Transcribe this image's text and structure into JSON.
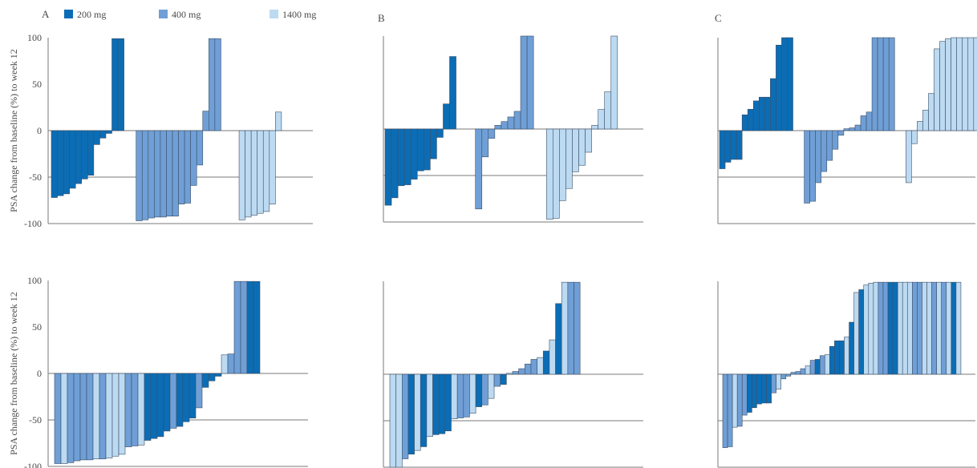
{
  "colors": {
    "200 mg": "#0b6db5",
    "400 mg": "#6f9fd6",
    "1400 mg": "#bcdaf1"
  },
  "legend": [
    {
      "name": "200 mg",
      "color": "#0b6db5"
    },
    {
      "name": "400 mg",
      "color": "#6f9fd6"
    },
    {
      "name": "1400 mg",
      "color": "#bcdaf1"
    }
  ],
  "ylabel": "PSA change from baseline (%) to week 12",
  "chart_data": [
    {
      "type": "bar",
      "panel": "A",
      "row": 1,
      "title": "A",
      "ylabel": "PSA change from baseline (%) to week 12",
      "ylim": [
        -100,
        100
      ],
      "yticks": [
        "100",
        "50",
        "0",
        "-50",
        "-100"
      ],
      "bars": [
        {
          "value": -72,
          "series": "200 mg"
        },
        {
          "value": -70,
          "series": "200 mg"
        },
        {
          "value": -68,
          "series": "200 mg"
        },
        {
          "value": -62,
          "series": "200 mg"
        },
        {
          "value": -57,
          "series": "200 mg"
        },
        {
          "value": -52,
          "series": "200 mg"
        },
        {
          "value": -48,
          "series": "200 mg"
        },
        {
          "value": -15,
          "series": "200 mg"
        },
        {
          "value": -8,
          "series": "200 mg"
        },
        {
          "value": -3,
          "series": "200 mg"
        },
        {
          "value": 99,
          "series": "200 mg"
        },
        {
          "value": 99,
          "series": "200 mg"
        },
        {
          "value": null,
          "series": ""
        },
        {
          "value": null,
          "series": ""
        },
        {
          "value": -97,
          "series": "400 mg"
        },
        {
          "value": -96,
          "series": "400 mg"
        },
        {
          "value": -94,
          "series": "400 mg"
        },
        {
          "value": -93,
          "series": "400 mg"
        },
        {
          "value": -93,
          "series": "400 mg"
        },
        {
          "value": -92,
          "series": "400 mg"
        },
        {
          "value": -92,
          "series": "400 mg"
        },
        {
          "value": -79,
          "series": "400 mg"
        },
        {
          "value": -78,
          "series": "400 mg"
        },
        {
          "value": -59,
          "series": "400 mg"
        },
        {
          "value": -37,
          "series": "400 mg"
        },
        {
          "value": 21,
          "series": "400 mg"
        },
        {
          "value": 99,
          "series": "400 mg"
        },
        {
          "value": 99,
          "series": "400 mg"
        },
        {
          "value": null,
          "series": ""
        },
        {
          "value": null,
          "series": ""
        },
        {
          "value": null,
          "series": ""
        },
        {
          "value": -96,
          "series": "1400 mg"
        },
        {
          "value": -93,
          "series": "1400 mg"
        },
        {
          "value": -91,
          "series": "1400 mg"
        },
        {
          "value": -89,
          "series": "1400 mg"
        },
        {
          "value": -87,
          "series": "1400 mg"
        },
        {
          "value": -79,
          "series": "1400 mg"
        },
        {
          "value": 20,
          "series": "1400 mg"
        }
      ]
    },
    {
      "type": "bar",
      "panel": "B",
      "row": 1,
      "title": "B",
      "ylim": [
        -100,
        100
      ],
      "yticks": [],
      "bars": [
        {
          "value": -82,
          "series": "200 mg"
        },
        {
          "value": -74,
          "series": "200 mg"
        },
        {
          "value": -61,
          "series": "200 mg"
        },
        {
          "value": -60,
          "series": "200 mg"
        },
        {
          "value": -54,
          "series": "200 mg"
        },
        {
          "value": -45,
          "series": "200 mg"
        },
        {
          "value": -44,
          "series": "200 mg"
        },
        {
          "value": -32,
          "series": "200 mg"
        },
        {
          "value": -9,
          "series": "200 mg"
        },
        {
          "value": 27,
          "series": "200 mg"
        },
        {
          "value": 78,
          "series": "200 mg"
        },
        {
          "value": null,
          "series": ""
        },
        {
          "value": null,
          "series": ""
        },
        {
          "value": null,
          "series": ""
        },
        {
          "value": -86,
          "series": "400 mg"
        },
        {
          "value": -30,
          "series": "400 mg"
        },
        {
          "value": -10,
          "series": "400 mg"
        },
        {
          "value": 4,
          "series": "400 mg"
        },
        {
          "value": 8,
          "series": "400 mg"
        },
        {
          "value": 13,
          "series": "400 mg"
        },
        {
          "value": 19,
          "series": "400 mg"
        },
        {
          "value": 100,
          "series": "400 mg"
        },
        {
          "value": 100,
          "series": "400 mg"
        },
        {
          "value": null,
          "series": ""
        },
        {
          "value": null,
          "series": ""
        },
        {
          "value": -97,
          "series": "1400 mg"
        },
        {
          "value": -96,
          "series": "1400 mg"
        },
        {
          "value": -77,
          "series": "1400 mg"
        },
        {
          "value": -64,
          "series": "1400 mg"
        },
        {
          "value": -46,
          "series": "1400 mg"
        },
        {
          "value": -39,
          "series": "1400 mg"
        },
        {
          "value": -25,
          "series": "1400 mg"
        },
        {
          "value": 4,
          "series": "1400 mg"
        },
        {
          "value": 21,
          "series": "1400 mg"
        },
        {
          "value": 40,
          "series": "1400 mg"
        },
        {
          "value": 100,
          "series": "1400 mg"
        }
      ]
    },
    {
      "type": "bar",
      "panel": "C",
      "row": 1,
      "title": "C",
      "ylim": [
        -100,
        100
      ],
      "yticks": [],
      "bars": [
        {
          "value": -41,
          "series": "200 mg"
        },
        {
          "value": -34,
          "series": "200 mg"
        },
        {
          "value": -31,
          "series": "200 mg"
        },
        {
          "value": -31,
          "series": "200 mg"
        },
        {
          "value": 17,
          "series": "200 mg"
        },
        {
          "value": 23,
          "series": "200 mg"
        },
        {
          "value": 32,
          "series": "200 mg"
        },
        {
          "value": 36,
          "series": "200 mg"
        },
        {
          "value": 36,
          "series": "200 mg"
        },
        {
          "value": 56,
          "series": "200 mg"
        },
        {
          "value": 92,
          "series": "200 mg"
        },
        {
          "value": 100,
          "series": "200 mg"
        },
        {
          "value": 100,
          "series": "200 mg"
        },
        {
          "value": null,
          "series": ""
        },
        {
          "value": null,
          "series": ""
        },
        {
          "value": -78,
          "series": "400 mg"
        },
        {
          "value": -76,
          "series": "400 mg"
        },
        {
          "value": -56,
          "series": "400 mg"
        },
        {
          "value": -44,
          "series": "400 mg"
        },
        {
          "value": -32,
          "series": "400 mg"
        },
        {
          "value": -20,
          "series": "400 mg"
        },
        {
          "value": -5,
          "series": "400 mg"
        },
        {
          "value": 2,
          "series": "400 mg"
        },
        {
          "value": 3,
          "series": "400 mg"
        },
        {
          "value": 6,
          "series": "400 mg"
        },
        {
          "value": 16,
          "series": "400 mg"
        },
        {
          "value": 20,
          "series": "400 mg"
        },
        {
          "value": 100,
          "series": "400 mg"
        },
        {
          "value": 100,
          "series": "400 mg"
        },
        {
          "value": 100,
          "series": "400 mg"
        },
        {
          "value": 100,
          "series": "400 mg"
        },
        {
          "value": null,
          "series": ""
        },
        {
          "value": null,
          "series": ""
        },
        {
          "value": -56,
          "series": "1400 mg"
        },
        {
          "value": -14,
          "series": "1400 mg"
        },
        {
          "value": 10,
          "series": "1400 mg"
        },
        {
          "value": 22,
          "series": "1400 mg"
        },
        {
          "value": 40,
          "series": "1400 mg"
        },
        {
          "value": 88,
          "series": "1400 mg"
        },
        {
          "value": 96,
          "series": "1400 mg"
        },
        {
          "value": 99,
          "series": "1400 mg"
        },
        {
          "value": 100,
          "series": "1400 mg"
        },
        {
          "value": 100,
          "series": "1400 mg"
        },
        {
          "value": 100,
          "series": "1400 mg"
        },
        {
          "value": 100,
          "series": "1400 mg"
        },
        {
          "value": 100,
          "series": "1400 mg"
        },
        {
          "value": 100,
          "series": "1400 mg"
        },
        {
          "value": 100,
          "series": "1400 mg"
        },
        {
          "value": 100,
          "series": "1400 mg"
        },
        {
          "value": 100,
          "series": "1400 mg"
        }
      ]
    },
    {
      "type": "bar",
      "panel": "A",
      "row": 2,
      "title": "",
      "ylabel": "PSA change from baseline (%) to week 12",
      "ylim": [
        -100,
        100
      ],
      "yticks": [
        "100",
        "50",
        "0",
        "-50",
        "-100"
      ],
      "bars": [
        {
          "value": -97,
          "series": "400 mg"
        },
        {
          "value": -97,
          "series": "1400 mg"
        },
        {
          "value": -96,
          "series": "400 mg"
        },
        {
          "value": -94,
          "series": "400 mg"
        },
        {
          "value": -93,
          "series": "400 mg"
        },
        {
          "value": -93,
          "series": "400 mg"
        },
        {
          "value": -92,
          "series": "1400 mg"
        },
        {
          "value": -92,
          "series": "400 mg"
        },
        {
          "value": -91,
          "series": "1400 mg"
        },
        {
          "value": -89,
          "series": "1400 mg"
        },
        {
          "value": -87,
          "series": "1400 mg"
        },
        {
          "value": -79,
          "series": "400 mg"
        },
        {
          "value": -78,
          "series": "400 mg"
        },
        {
          "value": -77,
          "series": "1400 mg"
        },
        {
          "value": -72,
          "series": "200 mg"
        },
        {
          "value": -70,
          "series": "200 mg"
        },
        {
          "value": -68,
          "series": "200 mg"
        },
        {
          "value": -62,
          "series": "200 mg"
        },
        {
          "value": -59,
          "series": "400 mg"
        },
        {
          "value": -57,
          "series": "200 mg"
        },
        {
          "value": -52,
          "series": "200 mg"
        },
        {
          "value": -48,
          "series": "200 mg"
        },
        {
          "value": -37,
          "series": "400 mg"
        },
        {
          "value": -15,
          "series": "200 mg"
        },
        {
          "value": -8,
          "series": "200 mg"
        },
        {
          "value": -3,
          "series": "200 mg"
        },
        {
          "value": 20,
          "series": "1400 mg"
        },
        {
          "value": 21,
          "series": "400 mg"
        },
        {
          "value": 99,
          "series": "400 mg"
        },
        {
          "value": 99,
          "series": "400 mg"
        },
        {
          "value": 99,
          "series": "200 mg"
        },
        {
          "value": 99,
          "series": "200 mg"
        }
      ]
    },
    {
      "type": "bar",
      "panel": "B",
      "row": 2,
      "title": "",
      "ylim": [
        -100,
        100
      ],
      "yticks": [],
      "bars": [
        {
          "value": -100,
          "series": "1400 mg"
        },
        {
          "value": -100,
          "series": "1400 mg"
        },
        {
          "value": -91,
          "series": "400 mg"
        },
        {
          "value": -86,
          "series": "200 mg"
        },
        {
          "value": -82,
          "series": "1400 mg"
        },
        {
          "value": -78,
          "series": "200 mg"
        },
        {
          "value": -67,
          "series": "1400 mg"
        },
        {
          "value": -65,
          "series": "200 mg"
        },
        {
          "value": -64,
          "series": "200 mg"
        },
        {
          "value": -61,
          "series": "200 mg"
        },
        {
          "value": -48,
          "series": "1400 mg"
        },
        {
          "value": -47,
          "series": "400 mg"
        },
        {
          "value": -46,
          "series": "400 mg"
        },
        {
          "value": -42,
          "series": "1400 mg"
        },
        {
          "value": -35,
          "series": "200 mg"
        },
        {
          "value": -33,
          "series": "400 mg"
        },
        {
          "value": -26,
          "series": "1400 mg"
        },
        {
          "value": -13,
          "series": "400 mg"
        },
        {
          "value": -11,
          "series": "200 mg"
        },
        {
          "value": 1,
          "series": "1400 mg"
        },
        {
          "value": 3,
          "series": "400 mg"
        },
        {
          "value": 6,
          "series": "400 mg"
        },
        {
          "value": 11,
          "series": "400 mg"
        },
        {
          "value": 16,
          "series": "400 mg"
        },
        {
          "value": 18,
          "series": "1400 mg"
        },
        {
          "value": 25,
          "series": "200 mg"
        },
        {
          "value": 37,
          "series": "1400 mg"
        },
        {
          "value": 76,
          "series": "200 mg"
        },
        {
          "value": 99,
          "series": "1400 mg"
        },
        {
          "value": 99,
          "series": "400 mg"
        },
        {
          "value": 99,
          "series": "400 mg"
        }
      ]
    },
    {
      "type": "bar",
      "panel": "C",
      "row": 2,
      "title": "",
      "ylim": [
        -100,
        100
      ],
      "yticks": [],
      "bars": [
        {
          "value": -79,
          "series": "400 mg"
        },
        {
          "value": -78,
          "series": "400 mg"
        },
        {
          "value": -57,
          "series": "1400 mg"
        },
        {
          "value": -56,
          "series": "400 mg"
        },
        {
          "value": -44,
          "series": "400 mg"
        },
        {
          "value": -41,
          "series": "200 mg"
        },
        {
          "value": -36,
          "series": "200 mg"
        },
        {
          "value": -32,
          "series": "200 mg"
        },
        {
          "value": -31,
          "series": "200 mg"
        },
        {
          "value": -31,
          "series": "200 mg"
        },
        {
          "value": -20,
          "series": "400 mg"
        },
        {
          "value": -16,
          "series": "1400 mg"
        },
        {
          "value": -5,
          "series": "400 mg"
        },
        {
          "value": -2,
          "series": "400 mg"
        },
        {
          "value": 2,
          "series": "400 mg"
        },
        {
          "value": 3,
          "series": "400 mg"
        },
        {
          "value": 6,
          "series": "400 mg"
        },
        {
          "value": 9,
          "series": "1400 mg"
        },
        {
          "value": 15,
          "series": "400 mg"
        },
        {
          "value": 16,
          "series": "200 mg"
        },
        {
          "value": 20,
          "series": "400 mg"
        },
        {
          "value": 21,
          "series": "1400 mg"
        },
        {
          "value": 30,
          "series": "200 mg"
        },
        {
          "value": 36,
          "series": "200 mg"
        },
        {
          "value": 36,
          "series": "200 mg"
        },
        {
          "value": 40,
          "series": "1400 mg"
        },
        {
          "value": 56,
          "series": "200 mg"
        },
        {
          "value": 88,
          "series": "1400 mg"
        },
        {
          "value": 91,
          "series": "200 mg"
        },
        {
          "value": 96,
          "series": "1400 mg"
        },
        {
          "value": 98,
          "series": "1400 mg"
        },
        {
          "value": 99,
          "series": "1400 mg"
        },
        {
          "value": 99,
          "series": "400 mg"
        },
        {
          "value": 99,
          "series": "400 mg"
        },
        {
          "value": 99,
          "series": "200 mg"
        },
        {
          "value": 99,
          "series": "200 mg"
        },
        {
          "value": 99,
          "series": "1400 mg"
        },
        {
          "value": 99,
          "series": "1400 mg"
        },
        {
          "value": 99,
          "series": "1400 mg"
        },
        {
          "value": 99,
          "series": "400 mg"
        },
        {
          "value": 99,
          "series": "400 mg"
        },
        {
          "value": 99,
          "series": "1400 mg"
        },
        {
          "value": 99,
          "series": "1400 mg"
        },
        {
          "value": 99,
          "series": "400 mg"
        },
        {
          "value": 99,
          "series": "1400 mg"
        },
        {
          "value": 99,
          "series": "400 mg"
        },
        {
          "value": 99,
          "series": "1400 mg"
        },
        {
          "value": 99,
          "series": "200 mg"
        },
        {
          "value": 99,
          "series": "1400 mg"
        }
      ]
    }
  ]
}
